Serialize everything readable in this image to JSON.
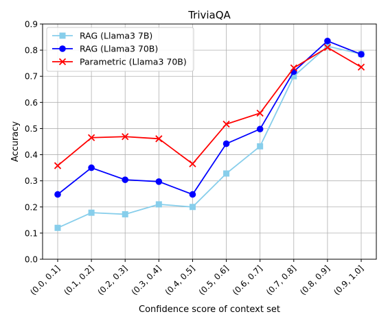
{
  "chart_data": {
    "type": "line",
    "title": "TriviaQA",
    "xlabel": "Confidence score of context set",
    "ylabel": "Accuracy",
    "categories": [
      "(0.0, 0.1]",
      "(0.1, 0.2]",
      "(0.2, 0.3]",
      "(0.3, 0.4]",
      "(0.4, 0.5]",
      "(0.5, 0.6]",
      "(0.6, 0.7]",
      "(0.7, 0.8]",
      "(0.8, 0.9]",
      "(0.9, 1.0]"
    ],
    "ylim": [
      0.0,
      0.9
    ],
    "yticks": [
      "0.0",
      "0.1",
      "0.2",
      "0.3",
      "0.4",
      "0.5",
      "0.6",
      "0.7",
      "0.8",
      "0.9"
    ],
    "grid": true,
    "legend_position": "top-left",
    "series": [
      {
        "name": "RAG (Llama3 7B)",
        "color": "#87ceeb",
        "marker": "square",
        "values": [
          0.12,
          0.178,
          0.172,
          0.21,
          0.2,
          0.328,
          0.432,
          0.7,
          0.815,
          0.785
        ]
      },
      {
        "name": "RAG (Llama3 70B)",
        "color": "#0000ff",
        "marker": "circle",
        "values": [
          0.248,
          0.35,
          0.304,
          0.297,
          0.248,
          0.442,
          0.498,
          0.718,
          0.835,
          0.784
        ]
      },
      {
        "name": "Parametric (Llama3 70B)",
        "color": "#ff0000",
        "marker": "x",
        "values": [
          0.358,
          0.465,
          0.469,
          0.461,
          0.365,
          0.517,
          0.559,
          0.732,
          0.81,
          0.735
        ]
      }
    ]
  }
}
